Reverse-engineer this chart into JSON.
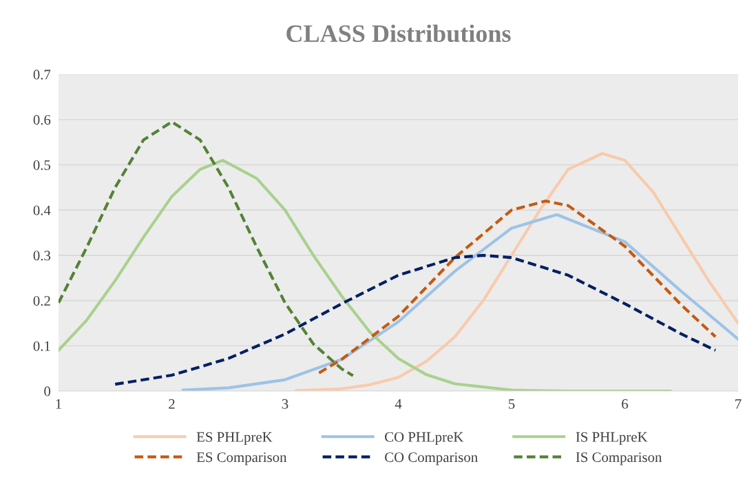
{
  "chart_data": {
    "type": "line",
    "title": "CLASS Distributions",
    "xlim": [
      1,
      7
    ],
    "xticks": [
      1,
      2,
      3,
      4,
      5,
      6,
      7
    ],
    "ylim": [
      0,
      0.7
    ],
    "yticks": [
      0,
      0.1,
      0.2,
      0.3,
      0.4,
      0.5,
      0.6,
      0.7
    ],
    "grid": "y",
    "legend": "bottom",
    "series": [
      {
        "name": "ES PHLpreK",
        "color": "#f8cbad",
        "line_style": "solid",
        "x": [
          3.1,
          3.5,
          3.75,
          4,
          4.25,
          4.5,
          4.75,
          5,
          5.25,
          5.5,
          5.8,
          6,
          6.25,
          6.5,
          6.75,
          7
        ],
        "values": [
          0.001,
          0.005,
          0.014,
          0.03,
          0.066,
          0.12,
          0.2,
          0.3,
          0.4,
          0.49,
          0.525,
          0.51,
          0.44,
          0.34,
          0.24,
          0.15
        ]
      },
      {
        "name": "CO PHLpreK",
        "color": "#9dc3e6",
        "line_style": "solid",
        "x": [
          2.1,
          2.5,
          3,
          3.5,
          4,
          4.5,
          5,
          5.4,
          6,
          6.5,
          7
        ],
        "values": [
          0.002,
          0.007,
          0.025,
          0.07,
          0.153,
          0.265,
          0.36,
          0.39,
          0.33,
          0.22,
          0.115
        ]
      },
      {
        "name": "IS PHLpreK",
        "color": "#a9d18e",
        "line_style": "solid",
        "x": [
          1,
          1.25,
          1.5,
          1.75,
          2,
          2.25,
          2.45,
          2.75,
          3,
          3.25,
          3.5,
          3.75,
          4,
          4.25,
          4.5,
          5,
          5.5,
          6.4
        ],
        "values": [
          0.09,
          0.157,
          0.244,
          0.34,
          0.43,
          0.49,
          0.51,
          0.47,
          0.4,
          0.3,
          0.21,
          0.13,
          0.072,
          0.036,
          0.016,
          0.002,
          0.0,
          0.0
        ]
      },
      {
        "name": "ES Comparison",
        "color": "#c55a11",
        "line_style": "dashed",
        "x": [
          3.3,
          3.5,
          4,
          4.5,
          5,
          5.3,
          5.5,
          6,
          6.5,
          6.8
        ],
        "values": [
          0.04,
          0.07,
          0.165,
          0.295,
          0.4,
          0.42,
          0.41,
          0.32,
          0.19,
          0.12
        ]
      },
      {
        "name": "CO Comparison",
        "color": "#002060",
        "line_style": "dashed",
        "x": [
          1.5,
          2,
          2.5,
          3,
          3.5,
          4,
          4.5,
          4.75,
          5,
          5.5,
          6,
          6.5,
          6.8
        ],
        "values": [
          0.015,
          0.035,
          0.072,
          0.126,
          0.193,
          0.256,
          0.295,
          0.3,
          0.295,
          0.256,
          0.193,
          0.126,
          0.09
        ]
      },
      {
        "name": "IS Comparison",
        "color": "#548235",
        "line_style": "dashed",
        "x": [
          1,
          1.25,
          1.5,
          1.75,
          2,
          2.25,
          2.5,
          2.75,
          3,
          3.25,
          3.5,
          3.6
        ],
        "values": [
          0.195,
          0.318,
          0.45,
          0.555,
          0.595,
          0.555,
          0.45,
          0.318,
          0.195,
          0.104,
          0.049,
          0.034
        ]
      }
    ]
  }
}
